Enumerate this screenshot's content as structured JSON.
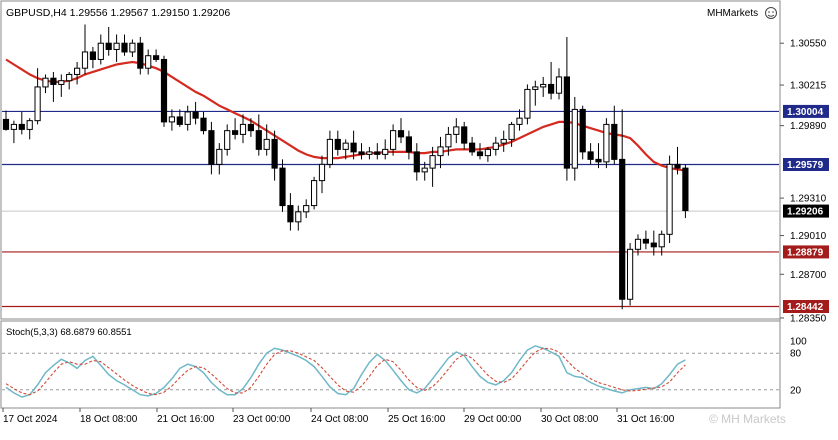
{
  "header": {
    "symbol_line": "GBPUSD,H4  1.29556 1.29567 1.29150 1.29206",
    "brand": "MHMarkets"
  },
  "watermark": "© MH Markets",
  "colors": {
    "candle": "#000000",
    "ma_line": "#d42a20",
    "blue_level": "#202a8a",
    "red_level": "#a31b1b",
    "stoch_main": "#6fb8c8",
    "stoch_signal": "#d24a3a",
    "grid_dashed": "#9a9a9a",
    "price_badge_current": "#000000"
  },
  "chart_data": [
    {
      "type": "candlestick",
      "symbol": "GBPUSD",
      "timeframe": "H4",
      "y_axis_ticks": [
        "1.30550",
        "1.30215",
        "1.29890",
        "1.29310",
        "1.29010",
        "1.28700",
        "1.28350"
      ],
      "ylim": [
        1.2835,
        1.3088
      ],
      "levels": [
        {
          "label": "1.30004",
          "value": 1.30004,
          "color": "blue"
        },
        {
          "label": "1.29579",
          "value": 1.29579,
          "color": "blue"
        },
        {
          "label": "1.28879",
          "value": 1.28879,
          "color": "red"
        },
        {
          "label": "1.28442",
          "value": 1.28442,
          "color": "red"
        }
      ],
      "current_price": {
        "label": "1.29206",
        "value": 1.29206
      },
      "x_labels": [
        "17 Oct 2024",
        "18 Oct 08:00",
        "21 Oct 16:00",
        "23 Oct 00:00",
        "24 Oct 08:00",
        "25 Oct 16:00",
        "29 Oct 00:00",
        "30 Oct 08:00",
        "31 Oct 16:00"
      ],
      "candles": [
        [
          1.2994,
          1.3001,
          1.2985,
          1.2986
        ],
        [
          1.2986,
          1.2993,
          1.2975,
          1.299
        ],
        [
          1.299,
          1.3,
          1.2982,
          1.2986
        ],
        [
          1.2986,
          1.2995,
          1.2978,
          1.2993
        ],
        [
          1.2993,
          1.3035,
          1.299,
          1.302
        ],
        [
          1.302,
          1.303,
          1.3015,
          1.3027
        ],
        [
          1.3027,
          1.3032,
          1.3008,
          1.3022
        ],
        [
          1.3022,
          1.303,
          1.3012,
          1.3025
        ],
        [
          1.3025,
          1.3032,
          1.3018,
          1.303
        ],
        [
          1.303,
          1.304,
          1.3022,
          1.3035
        ],
        [
          1.3035,
          1.307,
          1.303,
          1.3048
        ],
        [
          1.3048,
          1.3052,
          1.3035,
          1.3042
        ],
        [
          1.3042,
          1.3062,
          1.3038,
          1.3055
        ],
        [
          1.3055,
          1.3068,
          1.3045,
          1.305
        ],
        [
          1.305,
          1.3062,
          1.304,
          1.3055
        ],
        [
          1.3055,
          1.3062,
          1.3045,
          1.3048
        ],
        [
          1.3048,
          1.3058,
          1.3044,
          1.3055
        ],
        [
          1.3055,
          1.306,
          1.303,
          1.3035
        ],
        [
          1.3035,
          1.305,
          1.303,
          1.3045
        ],
        [
          1.3045,
          1.305,
          1.304,
          1.3042
        ],
        [
          1.3042,
          1.3045,
          1.2988,
          1.2992
        ],
        [
          1.2992,
          1.3002,
          1.2985,
          1.2996
        ],
        [
          1.2996,
          1.3002,
          1.2988,
          1.299
        ],
        [
          1.299,
          1.3005,
          1.2985,
          1.3
        ],
        [
          1.3,
          1.3008,
          1.299,
          1.2995
        ],
        [
          1.2995,
          1.3,
          1.2982,
          1.2985
        ],
        [
          1.2985,
          1.2992,
          1.295,
          1.2958
        ],
        [
          1.2958,
          1.2975,
          1.295,
          1.297
        ],
        [
          1.297,
          1.299,
          1.2965,
          1.2985
        ],
        [
          1.2985,
          1.2995,
          1.2978,
          1.2982
        ],
        [
          1.2982,
          1.2998,
          1.2975,
          1.299
        ],
        [
          1.299,
          1.2995,
          1.298,
          1.2985
        ],
        [
          1.2985,
          1.2998,
          1.2965,
          1.297
        ],
        [
          1.297,
          1.299,
          1.2965,
          1.2978
        ],
        [
          1.2978,
          1.2985,
          1.2945,
          1.2955
        ],
        [
          1.2955,
          1.2962,
          1.292,
          1.2925
        ],
        [
          1.2925,
          1.2935,
          1.2905,
          1.2912
        ],
        [
          1.2912,
          1.2925,
          1.2905,
          1.292
        ],
        [
          1.292,
          1.293,
          1.2915,
          1.2925
        ],
        [
          1.2925,
          1.2948,
          1.2922,
          1.2945
        ],
        [
          1.2945,
          1.2965,
          1.2935,
          1.2958
        ],
        [
          1.2958,
          1.2985,
          1.2955,
          1.2978
        ],
        [
          1.2978,
          1.2985,
          1.2965,
          1.297
        ],
        [
          1.297,
          1.2978,
          1.2962,
          1.2975
        ],
        [
          1.2975,
          1.2985,
          1.2962,
          1.2968
        ],
        [
          1.2968,
          1.2975,
          1.2962,
          1.2966
        ],
        [
          1.2966,
          1.2972,
          1.2962,
          1.2968
        ],
        [
          1.2968,
          1.2975,
          1.2962,
          1.2966
        ],
        [
          1.2966,
          1.2978,
          1.2962,
          1.297
        ],
        [
          1.297,
          1.299,
          1.2965,
          1.2985
        ],
        [
          1.2985,
          1.2995,
          1.2975,
          1.298
        ],
        [
          1.298,
          1.2985,
          1.2962,
          1.2968
        ],
        [
          1.2968,
          1.2975,
          1.2945,
          1.2952
        ],
        [
          1.2952,
          1.296,
          1.2945,
          1.2955
        ],
        [
          1.2955,
          1.2972,
          1.294,
          1.2965
        ],
        [
          1.2965,
          1.298,
          1.2955,
          1.2972
        ],
        [
          1.2972,
          1.2988,
          1.2965,
          1.2982
        ],
        [
          1.2982,
          1.2995,
          1.2975,
          1.2988
        ],
        [
          1.2988,
          1.2992,
          1.297,
          1.2975
        ],
        [
          1.2975,
          1.298,
          1.2965,
          1.2968
        ],
        [
          1.2968,
          1.2975,
          1.2962,
          1.2965
        ],
        [
          1.2965,
          1.2972,
          1.296,
          1.297
        ],
        [
          1.297,
          1.298,
          1.2965,
          1.2975
        ],
        [
          1.2975,
          1.2985,
          1.2968,
          1.2978
        ],
        [
          1.2978,
          1.2992,
          1.2972,
          1.299
        ],
        [
          1.299,
          1.3002,
          1.2985,
          1.2995
        ],
        [
          1.2995,
          1.3022,
          1.299,
          1.3018
        ],
        [
          1.3018,
          1.3025,
          1.3005,
          1.302
        ],
        [
          1.302,
          1.3028,
          1.3012,
          1.3022
        ],
        [
          1.3022,
          1.304,
          1.301,
          1.3015
        ],
        [
          1.3015,
          1.3035,
          1.301,
          1.3028
        ],
        [
          1.3028,
          1.306,
          1.2945,
          1.2955
        ],
        [
          1.2955,
          1.3012,
          1.2945,
          1.3002
        ],
        [
          1.3002,
          1.3005,
          1.2962,
          1.2968
        ],
        [
          1.2968,
          1.2975,
          1.2958,
          1.2962
        ],
        [
          1.2962,
          1.2975,
          1.2955,
          1.296
        ],
        [
          1.296,
          1.2995,
          1.2955,
          1.299
        ],
        [
          1.299,
          1.3005,
          1.2958,
          1.2962
        ],
        [
          1.2962,
          1.3002,
          1.2842,
          1.285
        ],
        [
          1.285,
          1.2895,
          1.2845,
          1.289
        ],
        [
          1.289,
          1.2902,
          1.2885,
          1.2898
        ],
        [
          1.2898,
          1.2905,
          1.289,
          1.2895
        ],
        [
          1.2895,
          1.2905,
          1.2885,
          1.2892
        ],
        [
          1.2892,
          1.2905,
          1.2885,
          1.2902
        ],
        [
          1.2902,
          1.2965,
          1.2895,
          1.2958
        ],
        [
          1.2958,
          1.2972,
          1.295,
          1.2955
        ],
        [
          1.2955,
          1.2958,
          1.2915,
          1.2921
        ]
      ],
      "ma_values": [
        1.3042,
        1.3038,
        1.3034,
        1.303,
        1.3027,
        1.3025,
        1.3024,
        1.3024,
        1.3025,
        1.3027,
        1.303,
        1.3032,
        1.3034,
        1.3036,
        1.3038,
        1.3039,
        1.304,
        1.3039,
        1.3037,
        1.3035,
        1.3032,
        1.3028,
        1.3024,
        1.302,
        1.3016,
        1.3013,
        1.3009,
        1.3005,
        1.3002,
        1.2999,
        1.2996,
        1.2993,
        1.2989,
        1.2985,
        1.2981,
        1.2977,
        1.2973,
        1.2969,
        1.2966,
        1.2964,
        1.2963,
        1.2963,
        1.2963,
        1.2964,
        1.2965,
        1.2966,
        1.2967,
        1.2967,
        1.2968,
        1.2968,
        1.2968,
        1.2968,
        1.2967,
        1.2967,
        1.2968,
        1.2968,
        1.2969,
        1.297,
        1.297,
        1.297,
        1.297,
        1.2971,
        1.2972,
        1.2974,
        1.2976,
        1.2979,
        1.2982,
        1.2985,
        1.2988,
        1.299,
        1.2992,
        1.2992,
        1.2991,
        1.2989,
        1.2987,
        1.2985,
        1.2983,
        1.2982,
        1.2981,
        1.2979,
        1.2973,
        1.2966,
        1.296,
        1.2957,
        1.2955,
        1.2954,
        1.2953
      ]
    },
    {
      "type": "line",
      "title": "Stoch(5,3,3) 68.6879 60.8551",
      "y_axis_ticks": [
        "100",
        "80",
        "20"
      ],
      "ylim": [
        0,
        100
      ],
      "levels": [
        80,
        20
      ],
      "series": [
        {
          "name": "main",
          "values": [
            24,
            15,
            8,
            12,
            28,
            48,
            60,
            70,
            64,
            55,
            68,
            75,
            60,
            45,
            35,
            28,
            20,
            12,
            10,
            14,
            24,
            38,
            55,
            62,
            58,
            48,
            32,
            20,
            12,
            12,
            22,
            40,
            62,
            80,
            88,
            85,
            80,
            75,
            68,
            58,
            42,
            25,
            14,
            12,
            22,
            45,
            65,
            78,
            68,
            52,
            35,
            20,
            15,
            22,
            38,
            55,
            72,
            82,
            76,
            58,
            42,
            32,
            28,
            35,
            48,
            68,
            85,
            92,
            88,
            82,
            75,
            48,
            42,
            40,
            32,
            26,
            22,
            18,
            15,
            20,
            22,
            24,
            22,
            30,
            45,
            62,
            69
          ]
        },
        {
          "name": "signal",
          "values": [
            30,
            22,
            15,
            12,
            18,
            32,
            48,
            62,
            66,
            62,
            62,
            68,
            66,
            56,
            46,
            36,
            27,
            20,
            14,
            12,
            16,
            26,
            40,
            52,
            58,
            56,
            46,
            34,
            22,
            15,
            15,
            24,
            42,
            62,
            78,
            84,
            84,
            80,
            74,
            68,
            56,
            42,
            28,
            18,
            16,
            26,
            42,
            60,
            70,
            66,
            52,
            36,
            24,
            19,
            25,
            38,
            54,
            70,
            78,
            72,
            58,
            44,
            34,
            32,
            38,
            52,
            68,
            82,
            88,
            87,
            82,
            68,
            55,
            46,
            38,
            32,
            28,
            24,
            20,
            18,
            19,
            21,
            23,
            25,
            33,
            48,
            60.9
          ]
        }
      ]
    }
  ]
}
